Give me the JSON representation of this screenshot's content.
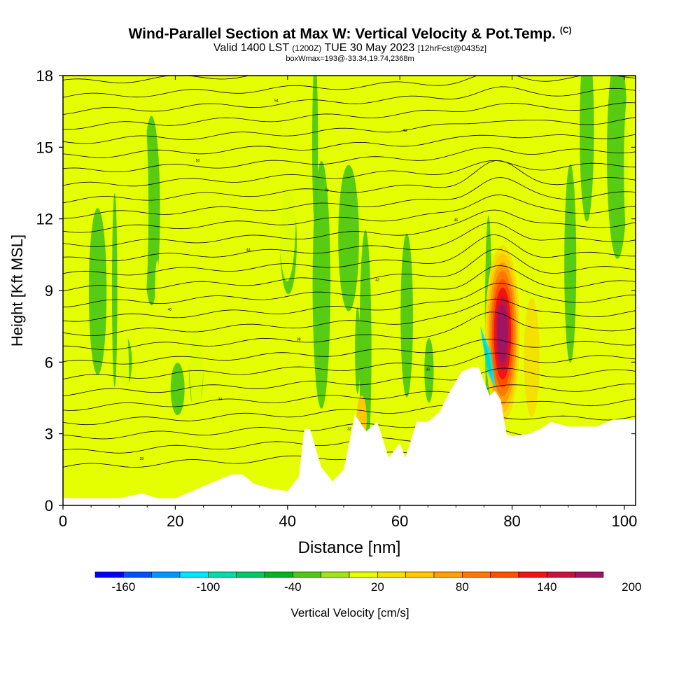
{
  "title": {
    "main": "Wind-Parallel Section at Max W: Vertical Velocity & Pot.Temp.",
    "copyright": "(C)",
    "valid_prefix": "Valid 1400 LST",
    "valid_utc": "(1200Z)",
    "valid_date": "TUE 30 May 2023",
    "forecast": "[12hrFcst@0435z]",
    "box": "boxWmax=193@-33.34,19.74,2368m"
  },
  "chart_data": {
    "type": "heatmap",
    "xlabel": "Distance [nm]",
    "ylabel": "Height [Kft MSL]",
    "xlim": [
      0,
      102
    ],
    "ylim": [
      0,
      18
    ],
    "x_ticks": [
      0,
      20,
      40,
      60,
      80,
      100
    ],
    "y_ticks": [
      0,
      3,
      6,
      9,
      12,
      15,
      18
    ],
    "colorbar": {
      "label": "Vertical Velocity [cm/s]",
      "min": -180,
      "step": 20,
      "tick_labels": [
        "-160",
        "-100",
        "-40",
        "20",
        "80",
        "140",
        "200"
      ],
      "tick_values": [
        -160,
        -100,
        -40,
        20,
        80,
        140,
        200
      ],
      "colors": [
        "#0000ff",
        "#0050ff",
        "#0096ff",
        "#00e6ff",
        "#00dcaa",
        "#00c864",
        "#00b41e",
        "#50c814",
        "#a0e614",
        "#e6ff00",
        "#f5e100",
        "#ffc800",
        "#ffa000",
        "#ff7800",
        "#ff5000",
        "#f01414",
        "#c8143c",
        "#a01464"
      ]
    },
    "background_w": 0,
    "updraft_w_max": 193,
    "downdraft_w_min": -130,
    "terrain": [
      [
        0,
        0.3
      ],
      [
        2,
        0.3
      ],
      [
        5,
        0.3
      ],
      [
        8,
        0.3
      ],
      [
        10,
        0.3
      ],
      [
        12,
        0.4
      ],
      [
        14,
        0.5
      ],
      [
        17,
        0.3
      ],
      [
        20,
        0.3
      ],
      [
        22,
        0.5
      ],
      [
        24,
        0.7
      ],
      [
        27,
        1.0
      ],
      [
        30,
        1.3
      ],
      [
        32,
        1.3
      ],
      [
        34,
        0.9
      ],
      [
        37,
        0.7
      ],
      [
        40,
        0.6
      ],
      [
        42,
        1.2
      ],
      [
        43,
        3.2
      ],
      [
        44,
        3.2
      ],
      [
        46,
        1.6
      ],
      [
        48,
        1.0
      ],
      [
        50,
        1.5
      ],
      [
        52,
        3.8
      ],
      [
        54,
        3.1
      ],
      [
        56,
        3.5
      ],
      [
        58,
        2.0
      ],
      [
        60,
        2.6
      ],
      [
        61,
        2.0
      ],
      [
        63,
        3.5
      ],
      [
        65,
        3.5
      ],
      [
        67,
        3.9
      ],
      [
        69,
        4.8
      ],
      [
        71,
        5.6
      ],
      [
        73,
        5.8
      ],
      [
        74,
        5.8
      ],
      [
        75,
        5.2
      ],
      [
        76,
        4.6
      ],
      [
        77,
        4.8
      ],
      [
        78,
        4.4
      ],
      [
        79,
        3.0
      ],
      [
        80,
        2.9
      ],
      [
        83,
        3.0
      ],
      [
        85,
        3.2
      ],
      [
        87,
        3.5
      ],
      [
        90,
        3.3
      ],
      [
        95,
        3.3
      ],
      [
        98,
        3.6
      ],
      [
        102,
        3.6
      ]
    ],
    "potential_temperature_contours": {
      "count": 27,
      "labels": [
        "28",
        "32",
        "34",
        "36",
        "38",
        "40",
        "42",
        "44",
        "46",
        "48",
        "50",
        "52",
        "54"
      ]
    }
  },
  "colors": {
    "plot_border": "#000000",
    "background": "#ffffff",
    "terrain_fill": "#ffffff"
  }
}
